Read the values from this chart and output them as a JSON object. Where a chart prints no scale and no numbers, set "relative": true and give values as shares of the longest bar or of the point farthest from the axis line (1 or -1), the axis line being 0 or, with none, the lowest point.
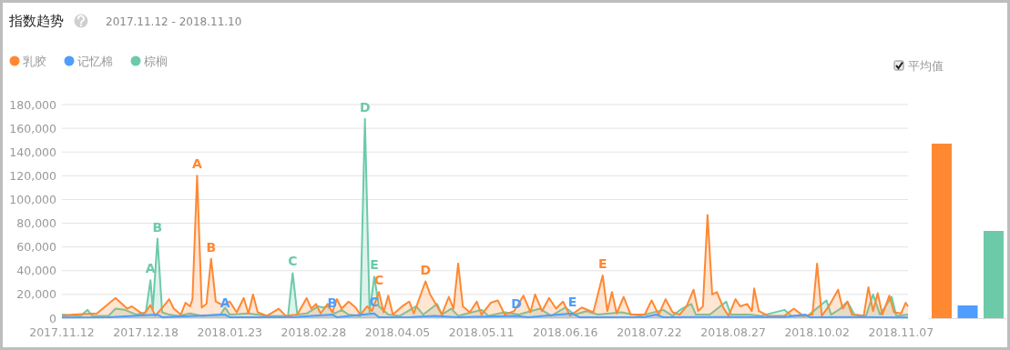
{
  "chart_data": [
    {
      "type": "area",
      "title": "指数趋势",
      "subtitle": "2017.11.12 - 2018.11.10",
      "legend": "top left",
      "grid": "y",
      "marker": "none",
      "line_style": "solid",
      "xlim": [
        "2017-11-12",
        "2018-11-10"
      ],
      "xticks": [
        {
          "value": "2017-11-12",
          "label": "2017.11.12"
        },
        {
          "value": "2017-12-18",
          "label": "2017.12.18"
        },
        {
          "value": "2018-01-23",
          "label": "2018.01.23"
        },
        {
          "value": "2018-02-28",
          "label": "2018.02.28"
        },
        {
          "value": "2018-04-05",
          "label": "2018.04.05"
        },
        {
          "value": "2018-05-11",
          "label": "2018.05.11"
        },
        {
          "value": "2018-06-16",
          "label": "2018.06.16"
        },
        {
          "value": "2018-07-22",
          "label": "2018.07.22"
        },
        {
          "value": "2018-08-27",
          "label": "2018.08.27"
        },
        {
          "value": "2018-10-02",
          "label": "2018.10.02"
        },
        {
          "value": "2018-11-07",
          "label": "2018.11.07"
        }
      ],
      "ylim": [
        0,
        180000
      ],
      "yticks": [
        0,
        {
          "value": 20000,
          "label": "20,000"
        },
        {
          "value": 40000,
          "label": "40,000"
        },
        {
          "value": 60000,
          "label": "60,000"
        },
        {
          "value": 80000,
          "label": "80,000"
        },
        {
          "value": 100000,
          "label": "100,000"
        },
        {
          "value": 120000,
          "label": "120,000"
        },
        {
          "value": 140000,
          "label": "140,000"
        },
        {
          "value": 160000,
          "label": "160,000"
        },
        {
          "value": 180000,
          "label": "180,000"
        }
      ],
      "series": [
        {
          "name": "乳胶",
          "color": "#ff8833",
          "x": [
            "2017-11-12",
            "2017-11-17",
            "2017-11-27",
            "2017-12-05",
            "2017-12-10",
            "2017-12-12",
            "2017-12-17",
            "2017-12-20",
            "2017-12-22",
            "2017-12-26",
            "2017-12-28",
            "2017-12-30",
            "2018-01-02",
            "2018-01-04",
            "2018-01-06",
            "2018-01-07",
            "2018-01-09",
            "2018-01-11",
            "2018-01-13",
            "2018-01-15",
            "2018-01-17",
            "2018-01-20",
            "2018-01-23",
            "2018-01-26",
            "2018-01-29",
            "2018-01-31",
            "2018-02-02",
            "2018-02-04",
            "2018-02-08",
            "2018-02-13",
            "2018-02-16",
            "2018-02-21",
            "2018-02-25",
            "2018-02-27",
            "2018-03-01",
            "2018-03-03",
            "2018-03-06",
            "2018-03-08",
            "2018-03-10",
            "2018-03-12",
            "2018-03-15",
            "2018-03-18",
            "2018-03-20",
            "2018-03-23",
            "2018-03-25",
            "2018-03-28",
            "2018-03-30",
            "2018-04-01",
            "2018-04-03",
            "2018-04-07",
            "2018-04-10",
            "2018-04-12",
            "2018-04-17",
            "2018-04-19",
            "2018-04-22",
            "2018-04-24",
            "2018-04-27",
            "2018-04-29",
            "2018-05-01",
            "2018-05-03",
            "2018-05-06",
            "2018-05-09",
            "2018-05-11",
            "2018-05-15",
            "2018-05-18",
            "2018-05-21",
            "2018-05-25",
            "2018-05-29",
            "2018-06-01",
            "2018-06-03",
            "2018-06-06",
            "2018-06-09",
            "2018-06-12",
            "2018-06-15",
            "2018-06-18",
            "2018-06-23",
            "2018-06-28",
            "2018-07-02",
            "2018-07-04",
            "2018-07-06",
            "2018-07-08",
            "2018-07-11",
            "2018-07-14",
            "2018-07-20",
            "2018-07-23",
            "2018-07-26",
            "2018-07-29",
            "2018-08-01",
            "2018-08-04",
            "2018-08-07",
            "2018-08-10",
            "2018-08-12",
            "2018-08-14",
            "2018-08-16",
            "2018-08-18",
            "2018-08-20",
            "2018-08-23",
            "2018-08-25",
            "2018-08-28",
            "2018-08-30",
            "2018-09-02",
            "2018-09-04",
            "2018-09-05",
            "2018-09-07",
            "2018-09-11",
            "2018-09-18",
            "2018-09-22",
            "2018-09-26",
            "2018-09-30",
            "2018-10-02",
            "2018-10-04",
            "2018-10-07",
            "2018-10-11",
            "2018-10-13",
            "2018-10-15",
            "2018-10-17",
            "2018-10-22",
            "2018-10-24",
            "2018-10-26",
            "2018-10-28",
            "2018-10-30",
            "2018-11-02",
            "2018-11-04",
            "2018-11-07",
            "2018-11-09",
            "2018-11-10"
          ],
          "values": [
            2000,
            3000,
            4000,
            17000,
            8000,
            10000,
            3000,
            11000,
            2000,
            11000,
            16000,
            8000,
            3000,
            13000,
            10000,
            16000,
            120000,
            9000,
            12000,
            50000,
            14000,
            11000,
            14000,
            5000,
            17000,
            4000,
            20000,
            5000,
            2000,
            8000,
            2000,
            3000,
            17000,
            8000,
            12000,
            4000,
            12000,
            5000,
            16000,
            8000,
            14000,
            9000,
            3000,
            10000,
            6000,
            22000,
            5000,
            19000,
            3000,
            10000,
            14000,
            4000,
            31000,
            20000,
            10000,
            3000,
            18000,
            8000,
            46000,
            10000,
            5000,
            14000,
            3000,
            13000,
            15000,
            3000,
            6000,
            19000,
            5000,
            20000,
            6000,
            17000,
            8000,
            14000,
            2000,
            9000,
            5000,
            36000,
            6000,
            22000,
            4000,
            18000,
            3000,
            3000,
            15000,
            3000,
            16000,
            5000,
            3000,
            10000,
            24000,
            6000,
            10000,
            87000,
            20000,
            22000,
            8000,
            2000,
            16000,
            10000,
            12000,
            6000,
            25000,
            6000,
            2000,
            2000,
            8000,
            2000,
            3000,
            46000,
            2000,
            10000,
            24000,
            8000,
            14000,
            3000,
            2000,
            26000,
            6000,
            21000,
            3000,
            19000,
            5000,
            4000,
            13000,
            10000
          ]
        },
        {
          "name": "记忆棉",
          "color": "#4e9dff",
          "x": [
            "2017-11-12",
            "2017-12-02",
            "2017-12-23",
            "2017-12-25",
            "2018-01-21",
            "2018-01-23",
            "2018-02-20",
            "2018-03-08",
            "2018-03-10",
            "2018-03-26",
            "2018-03-28",
            "2018-04-11",
            "2018-04-21",
            "2018-05-01",
            "2018-05-26",
            "2018-05-31",
            "2018-06-19",
            "2018-06-22",
            "2018-07-20",
            "2018-07-25",
            "2018-07-28",
            "2018-08-24",
            "2018-09-18",
            "2018-09-27",
            "2018-09-29",
            "2018-10-18",
            "2018-11-10"
          ],
          "values": [
            500,
            800,
            3000,
            800,
            3000,
            800,
            1000,
            3000,
            800,
            4000,
            800,
            1000,
            2000,
            800,
            2000,
            800,
            4000,
            800,
            1000,
            3000,
            800,
            1000,
            1000,
            3000,
            800,
            1000,
            500
          ]
        },
        {
          "name": "棕榈",
          "color": "#6ccaa8",
          "x": [
            "2017-11-12",
            "2017-11-20",
            "2017-11-23",
            "2017-11-25",
            "2017-12-02",
            "2017-12-05",
            "2017-12-09",
            "2017-12-14",
            "2017-12-18",
            "2017-12-20",
            "2017-12-21",
            "2017-12-23",
            "2017-12-25",
            "2017-12-28",
            "2018-01-01",
            "2018-01-06",
            "2018-01-11",
            "2018-01-19",
            "2018-01-21",
            "2018-01-23",
            "2018-01-31",
            "2018-02-08",
            "2018-02-17",
            "2018-02-19",
            "2018-02-21",
            "2018-02-25",
            "2018-03-02",
            "2018-03-04",
            "2018-03-06",
            "2018-03-09",
            "2018-03-12",
            "2018-03-15",
            "2018-03-20",
            "2018-03-22",
            "2018-03-24",
            "2018-03-26",
            "2018-03-28",
            "2018-04-01",
            "2018-04-06",
            "2018-04-13",
            "2018-04-16",
            "2018-04-22",
            "2018-04-24",
            "2018-04-28",
            "2018-05-01",
            "2018-05-11",
            "2018-05-14",
            "2018-05-21",
            "2018-05-27",
            "2018-06-05",
            "2018-06-10",
            "2018-06-16",
            "2018-06-20",
            "2018-06-25",
            "2018-06-30",
            "2018-07-10",
            "2018-07-18",
            "2018-07-28",
            "2018-08-01",
            "2018-08-05",
            "2018-08-09",
            "2018-08-11",
            "2018-08-17",
            "2018-08-24",
            "2018-08-26",
            "2018-09-03",
            "2018-09-08",
            "2018-09-18",
            "2018-09-21",
            "2018-09-28",
            "2018-10-06",
            "2018-10-08",
            "2018-10-12",
            "2018-10-15",
            "2018-10-18",
            "2018-10-23",
            "2018-10-26",
            "2018-10-29",
            "2018-11-03",
            "2018-11-05",
            "2018-11-10"
          ],
          "values": [
            3000,
            2000,
            7000,
            2000,
            2000,
            8000,
            7000,
            3000,
            5000,
            32000,
            8000,
            67000,
            5000,
            3000,
            2000,
            4000,
            2000,
            3000,
            9000,
            3000,
            4000,
            2000,
            2000,
            38000,
            3000,
            4000,
            10000,
            9000,
            10000,
            4000,
            7000,
            3000,
            2000,
            168000,
            5000,
            35000,
            10000,
            3000,
            2000,
            10000,
            3000,
            12000,
            3000,
            8000,
            2000,
            7000,
            2000,
            5000,
            3000,
            8000,
            2000,
            9000,
            3000,
            6000,
            3000,
            5000,
            2000,
            7000,
            2000,
            8000,
            12000,
            3000,
            3000,
            14000,
            3000,
            3000,
            2000,
            7000,
            2000,
            2000,
            15000,
            3000,
            8000,
            14000,
            3000,
            2000,
            20000,
            3000,
            18000,
            2000,
            3000
          ]
        }
      ],
      "annotations": [
        {
          "text": "A",
          "x": "2018-01-09",
          "y": 120000
        },
        {
          "text": "B",
          "x": "2018-01-15",
          "y": 50000
        },
        {
          "text": "C",
          "x": "2018-03-28",
          "y": 22000
        },
        {
          "text": "D",
          "x": "2018-04-17",
          "y": 31000
        },
        {
          "text": "E",
          "x": "2018-07-02",
          "y": 36000
        },
        {
          "text": "A",
          "x": "2018-01-21",
          "y": 3000
        },
        {
          "text": "B",
          "x": "2018-03-08",
          "y": 3000
        },
        {
          "text": "C",
          "x": "2018-03-26",
          "y": 4000
        },
        {
          "text": "D",
          "x": "2018-05-26",
          "y": 2000
        },
        {
          "text": "E",
          "x": "2018-06-19",
          "y": 4000
        },
        {
          "text": "A",
          "x": "2017-12-20",
          "y": 32000
        },
        {
          "text": "B",
          "x": "2017-12-23",
          "y": 67000
        },
        {
          "text": "C",
          "x": "2018-02-19",
          "y": 38000
        },
        {
          "text": "D",
          "x": "2018-03-22",
          "y": 168000
        },
        {
          "text": "E",
          "x": "2018-03-26",
          "y": 35000
        }
      ]
    },
    {
      "type": "bar",
      "title": "平均值",
      "relative": true,
      "categories": [
        null,
        null,
        null
      ],
      "values": [
        1,
        0.073,
        0.5
      ],
      "colors": [
        "#ff8833",
        "#4e9dff",
        "#6ccaa8"
      ]
    }
  ]
}
